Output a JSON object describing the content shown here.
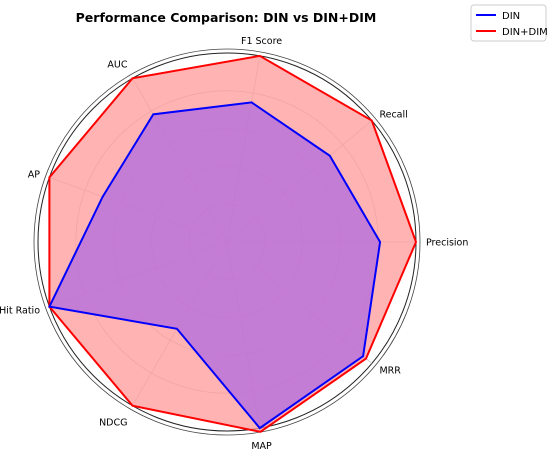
{
  "chart_data": {
    "type": "radar",
    "title": "Performance Comparison: DIN vs DIN+DIM",
    "axes": [
      "Precision",
      "Recall",
      "F1 Score",
      "AUC",
      "AP",
      "Hit Ratio",
      "NDCG",
      "MAP",
      "MRR"
    ],
    "rlim": [
      0,
      1
    ],
    "rings": [
      0.2,
      0.4,
      0.6,
      0.8,
      1.0
    ],
    "grid": true,
    "legend_position": "top-right",
    "series": [
      {
        "name": "DIN",
        "color": "#0000ff",
        "fill": "#b06be0",
        "values": [
          0.81,
          0.71,
          0.75,
          0.78,
          0.7,
          1.0,
          0.53,
          1.0,
          0.94
        ]
      },
      {
        "name": "DIN+DIM",
        "color": "#ff0000",
        "fill": "#ff9a9a",
        "values": [
          1.0,
          1.0,
          1.0,
          1.0,
          1.0,
          1.0,
          1.0,
          1.02,
          0.96
        ]
      }
    ]
  }
}
